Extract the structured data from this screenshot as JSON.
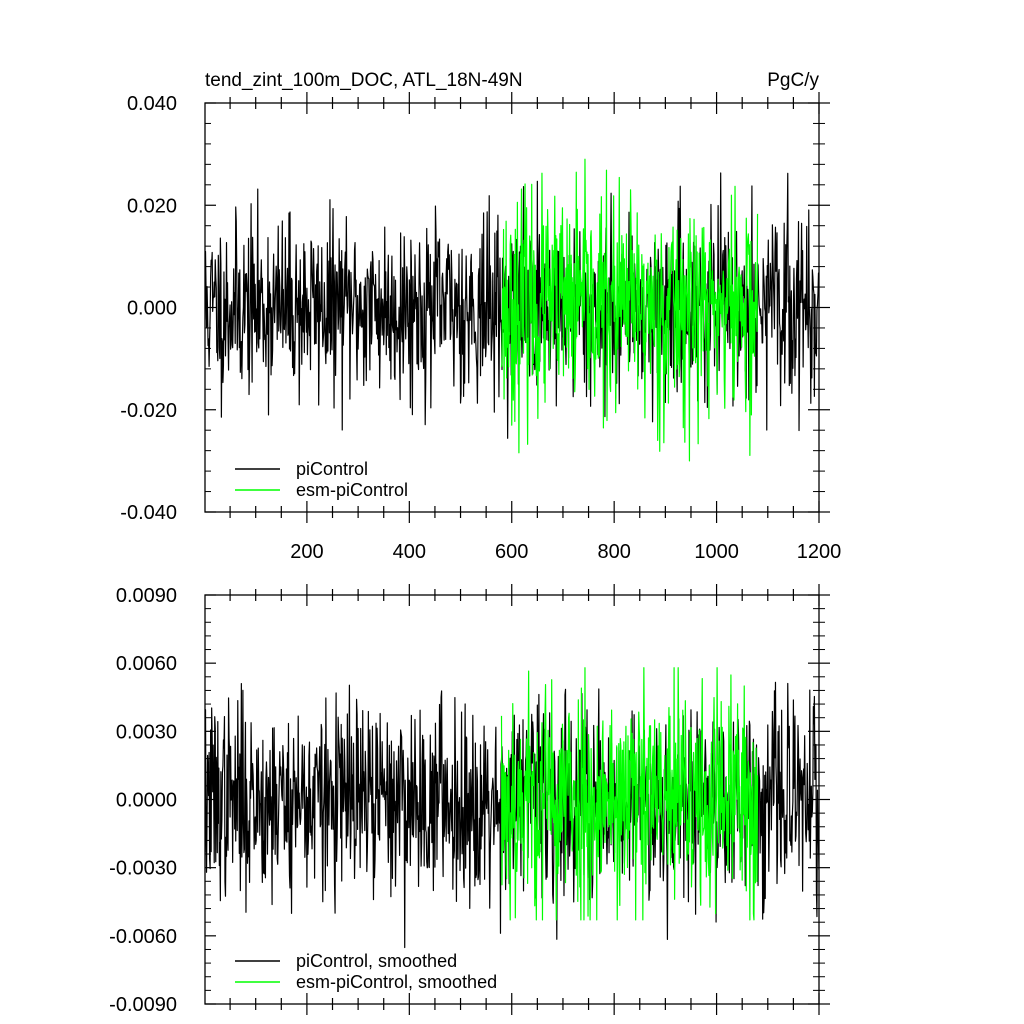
{
  "chart_data": [
    {
      "type": "line",
      "title": "tend_zint_100m_DOC, ATL_18N-49N",
      "units": "PgC/y",
      "xlim": [
        1,
        1200
      ],
      "ylim": [
        -0.04,
        0.04
      ],
      "x_ticks": [
        200,
        400,
        600,
        800,
        1000,
        1200
      ],
      "x_tick_labels": [
        "200",
        "400",
        "600",
        "800",
        "1000",
        "1200"
      ],
      "y_ticks": [
        -0.04,
        -0.02,
        0.0,
        0.02,
        0.04
      ],
      "y_tick_labels": [
        "-0.040",
        "-0.020",
        "0.000",
        "0.020",
        "0.040"
      ],
      "legend_position": "bottom-left",
      "series": [
        {
          "name": "piControl",
          "color": "#000000",
          "x_range": [
            1,
            1200
          ],
          "std": 0.0085,
          "peak_max": 0.034,
          "peak_min": -0.038,
          "seed": 11
        },
        {
          "name": "esm-piControl",
          "color": "#00ff00",
          "x_range": [
            580,
            1080
          ],
          "std": 0.0105,
          "peak_max": 0.029,
          "peak_min": -0.03,
          "seed": 23
        }
      ]
    },
    {
      "type": "line",
      "xlim": [
        1,
        1200
      ],
      "ylim": [
        -0.009,
        0.009
      ],
      "y_ticks": [
        -0.009,
        -0.006,
        -0.003,
        0.0,
        0.003,
        0.006,
        0.009
      ],
      "y_tick_labels": [
        "-0.0090",
        "-0.0060",
        "-0.0030",
        "0.0000",
        "0.0030",
        "0.0060",
        "0.0090"
      ],
      "legend_position": "bottom-left",
      "series": [
        {
          "name": "piControl, smoothed",
          "color": "#000000",
          "x_range": [
            1,
            1200
          ],
          "std": 0.0021,
          "peak_max": 0.0066,
          "peak_min": -0.0081,
          "seed": 37
        },
        {
          "name": "esm-piControl, smoothed",
          "color": "#00ff00",
          "x_range": [
            580,
            1080
          ],
          "std": 0.0026,
          "peak_max": 0.0058,
          "peak_min": -0.0053,
          "seed": 53
        }
      ]
    }
  ]
}
